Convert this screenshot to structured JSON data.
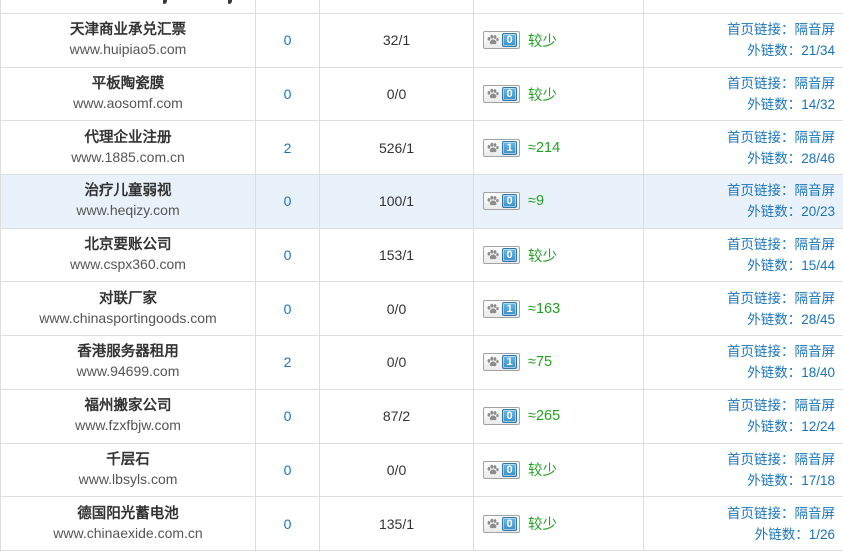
{
  "table": {
    "partial_row": {
      "descender_marks_x": [
        163,
        228
      ]
    },
    "rows": [
      {
        "title": "天津商业承兑汇票",
        "url": "www.huipiao5.com",
        "col2": "0",
        "ratio": "32/1",
        "badge": "0",
        "badge_text": "较少",
        "home_link": "首页链接：隔音屏",
        "outlinks": "外链数：21/34",
        "highlight": false
      },
      {
        "title": "平板陶瓷膜",
        "url": "www.aosomf.com",
        "col2": "0",
        "ratio": "0/0",
        "badge": "0",
        "badge_text": "较少",
        "home_link": "首页链接：隔音屏",
        "outlinks": "外链数：14/32",
        "highlight": false
      },
      {
        "title": "代理企业注册",
        "url": "www.1885.com.cn",
        "col2": "2",
        "ratio": "526/1",
        "badge": "1",
        "badge_text": "≈214",
        "home_link": "首页链接：隔音屏",
        "outlinks": "外链数：28/46",
        "highlight": false
      },
      {
        "title": "治疗儿童弱视",
        "url": "www.heqizy.com",
        "col2": "0",
        "ratio": "100/1",
        "badge": "0",
        "badge_text": "≈9",
        "home_link": "首页链接：隔音屏",
        "outlinks": "外链数：20/23",
        "highlight": true
      },
      {
        "title": "北京要账公司",
        "url": "www.cspx360.com",
        "col2": "0",
        "ratio": "153/1",
        "badge": "0",
        "badge_text": "较少",
        "home_link": "首页链接：隔音屏",
        "outlinks": "外链数：15/44",
        "highlight": false
      },
      {
        "title": "对联厂家",
        "url": "www.chinasportingoods.com",
        "col2": "0",
        "ratio": "0/0",
        "badge": "1",
        "badge_text": "≈163",
        "home_link": "首页链接：隔音屏",
        "outlinks": "外链数：28/45",
        "highlight": false
      },
      {
        "title": "香港服务器租用",
        "url": "www.94699.com",
        "col2": "2",
        "ratio": "0/0",
        "badge": "1",
        "badge_text": "≈75",
        "home_link": "首页链接：隔音屏",
        "outlinks": "外链数：18/40",
        "highlight": false
      },
      {
        "title": "福州搬家公司",
        "url": "www.fzxfbjw.com",
        "col2": "0",
        "ratio": "87/2",
        "badge": "0",
        "badge_text": "≈265",
        "home_link": "首页链接：隔音屏",
        "outlinks": "外链数：12/24",
        "highlight": false
      },
      {
        "title": "千层石",
        "url": "www.lbsyls.com",
        "col2": "0",
        "ratio": "0/0",
        "badge": "0",
        "badge_text": "较少",
        "home_link": "首页链接：隔音屏",
        "outlinks": "外链数：17/18",
        "highlight": false
      },
      {
        "title": "德国阳光蓄电池",
        "url": "www.chinaexide.com.cn",
        "col2": "0",
        "ratio": "135/1",
        "badge": "0",
        "badge_text": "较少",
        "home_link": "首页链接：隔音屏",
        "outlinks": "外链数：1/26",
        "highlight": false
      }
    ]
  },
  "colors": {
    "link_blue": "#1b75bc",
    "traffic_green": "#21a121",
    "row_highlight": "#e9f2fa",
    "grid_border": "#dddddd",
    "badge_blue": "#4a9ed3"
  },
  "icons": {
    "weight_icon": "paw-icon"
  }
}
